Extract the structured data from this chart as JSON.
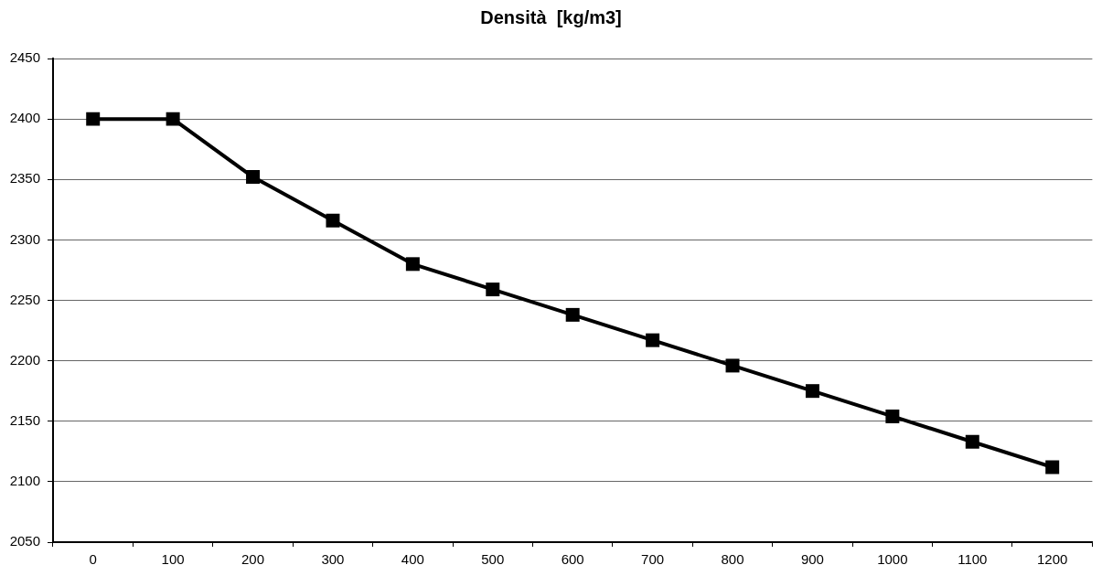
{
  "chart_data": {
    "type": "line",
    "title": "Densità  [kg/m3]",
    "categories": [
      "0",
      "100",
      "200",
      "300",
      "400",
      "500",
      "600",
      "700",
      "800",
      "900",
      "1000",
      "1100",
      "1200"
    ],
    "values": [
      2400,
      2400,
      2352,
      2316,
      2280,
      2259,
      2238,
      2217,
      2196,
      2175,
      2154,
      2133,
      2112
    ],
    "color": "#000000",
    "ylim": [
      2050,
      2450
    ],
    "yticks": [
      2050,
      2100,
      2150,
      2200,
      2250,
      2300,
      2350,
      2400,
      2450
    ],
    "grid": "y",
    "marker": "square",
    "line_style": "solid"
  }
}
